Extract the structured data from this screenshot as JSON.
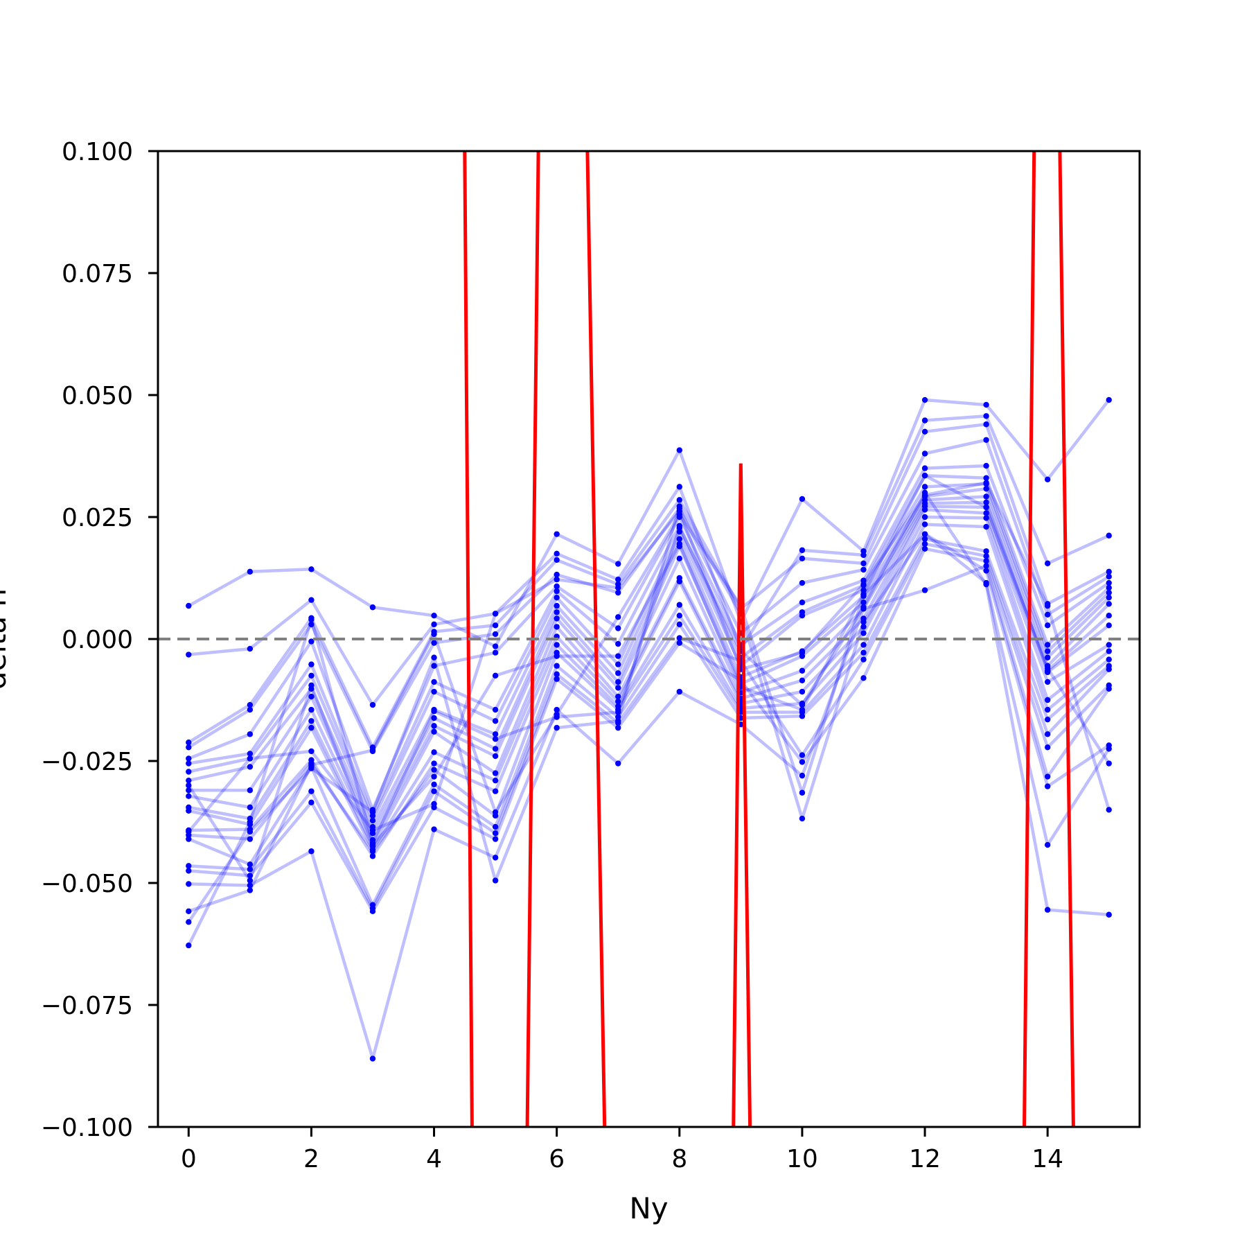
{
  "chart_data": {
    "type": "line",
    "title": "",
    "xlabel": "Ny",
    "ylabel": "delta n",
    "xlim": [
      -0.5,
      15.5
    ],
    "ylim": [
      -0.1,
      0.1
    ],
    "xticks": [
      0,
      2,
      4,
      6,
      8,
      10,
      12,
      14
    ],
    "xtick_labels": [
      "0",
      "2",
      "4",
      "6",
      "8",
      "10",
      "12",
      "14"
    ],
    "yticks": [
      0.1,
      0.075,
      0.05,
      0.025,
      0.0,
      -0.025,
      -0.05,
      -0.075,
      -0.1
    ],
    "ytick_labels": [
      "0.100",
      "0.075",
      "0.050",
      "0.025",
      "0.000",
      "−0.025",
      "−0.050",
      "−0.075",
      "−0.100"
    ],
    "grid": false,
    "reference_line": {
      "y": 0.0,
      "style": "dashed",
      "color": "#808080"
    },
    "colors": {
      "ensemble": "#0000ff",
      "highlight": "#ff0000"
    },
    "x": [
      0,
      1,
      2,
      3,
      4,
      5,
      6,
      7,
      8,
      9,
      10,
      11,
      12,
      13,
      14,
      15
    ],
    "ensemble_series": [
      [
        0.0068,
        0.0138,
        0.0143,
        0.0065,
        0.0048,
        -0.0015,
        0.0215,
        0.0154,
        0.0387,
        0.0035,
        0.0287,
        0.018,
        0.049,
        0.048,
        0.0327,
        0.049
      ],
      [
        -0.0032,
        -0.002,
        0.008,
        -0.0135,
        0.003,
        0.0052,
        0.0175,
        0.0122,
        0.0312,
        -0.0021,
        0.0182,
        0.0172,
        0.0448,
        0.0457,
        0.0155,
        0.0212
      ],
      [
        -0.0212,
        -0.0135,
        0.0043,
        -0.0222,
        0.0015,
        0.0028,
        0.0162,
        0.0112,
        0.0285,
        0.0062,
        0.0165,
        0.0155,
        0.0425,
        0.044,
        0.0072,
        0.0138
      ],
      [
        -0.0222,
        -0.0145,
        0.003,
        -0.023,
        -0.0008,
        0.001,
        0.0132,
        0.0095,
        0.0268,
        0.0012,
        0.0115,
        0.0142,
        0.038,
        0.0408,
        0.005,
        0.0128
      ],
      [
        -0.0245,
        -0.0195,
        -0.0005,
        -0.035,
        -0.0055,
        -0.0028,
        0.0108,
        0.0022,
        0.025,
        -0.0012,
        0.0075,
        0.012,
        0.035,
        0.0355,
        0.0028,
        0.0115
      ],
      [
        -0.0255,
        -0.0235,
        -0.0052,
        -0.0362,
        -0.0088,
        -0.0145,
        0.0098,
        -0.001,
        0.0232,
        -0.0038,
        0.0055,
        0.011,
        0.0335,
        0.033,
        -0.0012,
        0.0105
      ],
      [
        -0.0272,
        -0.0245,
        -0.0075,
        -0.0372,
        -0.0108,
        -0.0168,
        0.0085,
        -0.0052,
        0.022,
        -0.0055,
        0.0048,
        0.01,
        0.0312,
        0.0318,
        -0.0025,
        0.0095
      ],
      [
        -0.029,
        -0.0262,
        -0.0102,
        -0.0385,
        -0.0145,
        -0.0195,
        0.0068,
        -0.007,
        0.0205,
        -0.0078,
        -0.0025,
        0.0088,
        0.0292,
        0.0308,
        -0.0038,
        0.0085
      ],
      [
        -0.031,
        -0.031,
        -0.0118,
        -0.0398,
        -0.0162,
        -0.0225,
        0.0055,
        -0.0088,
        0.019,
        -0.0092,
        -0.0035,
        0.0075,
        0.0285,
        0.0292,
        -0.0055,
        0.0072
      ],
      [
        -0.0322,
        -0.0345,
        -0.0145,
        -0.0412,
        -0.0178,
        -0.024,
        0.0042,
        -0.01,
        0.0165,
        -0.011,
        -0.0065,
        0.0062,
        0.0278,
        0.028,
        -0.0065,
        0.0048
      ],
      [
        -0.0345,
        -0.0368,
        -0.0168,
        -0.0425,
        -0.019,
        -0.0275,
        0.0025,
        -0.0118,
        0.0125,
        -0.0122,
        -0.0085,
        0.0042,
        0.0272,
        0.027,
        -0.0068,
        0.0028
      ],
      [
        -0.0352,
        -0.038,
        -0.0182,
        -0.0432,
        -0.0232,
        -0.029,
        0.0005,
        -0.0128,
        0.0118,
        -0.0132,
        -0.0108,
        0.0025,
        0.0265,
        0.0258,
        -0.0088,
        -0.0012
      ],
      [
        -0.0392,
        -0.039,
        -0.0248,
        -0.0445,
        -0.0255,
        -0.0312,
        -0.0012,
        -0.0138,
        0.007,
        -0.0142,
        -0.0132,
        0.0012,
        0.025,
        0.0248,
        -0.0125,
        -0.0025
      ],
      [
        -0.0402,
        -0.041,
        -0.0255,
        -0.0435,
        -0.0268,
        -0.0362,
        -0.0028,
        -0.0145,
        0.0048,
        -0.015,
        -0.015,
        -0.0012,
        0.0235,
        0.023,
        -0.0145,
        -0.0042
      ],
      [
        -0.041,
        -0.0462,
        -0.0262,
        -0.0545,
        -0.0298,
        -0.0385,
        -0.0055,
        -0.016,
        0.003,
        -0.0162,
        -0.0158,
        -0.0028,
        0.0205,
        0.018,
        -0.0165,
        -0.0055
      ],
      [
        -0.0465,
        -0.0472,
        -0.0312,
        -0.0552,
        -0.0312,
        -0.0398,
        -0.0072,
        -0.0172,
        0.0002,
        -0.0045,
        -0.0238,
        -0.0042,
        0.0195,
        0.017,
        -0.0195,
        -0.0062
      ],
      [
        -0.0475,
        -0.0485,
        -0.0335,
        -0.0558,
        -0.0345,
        -0.041,
        -0.0082,
        -0.0182,
        -0.0008,
        -0.0085,
        -0.0252,
        -0.008,
        0.0185,
        0.016,
        -0.0222,
        -0.0095
      ],
      [
        -0.0502,
        -0.0505,
        -0.0435,
        -0.086,
        -0.039,
        -0.0448,
        -0.0145,
        -0.0255,
        -0.0108,
        -0.0175,
        -0.028,
        0.0062,
        0.01,
        0.015,
        -0.0282,
        -0.0102
      ],
      [
        -0.0558,
        -0.0515,
        -0.0258,
        -0.0228,
        0.001,
        -0.0355,
        -0.0155,
        0.0045,
        0.0255,
        0.0068,
        -0.0315,
        0.009,
        0.0215,
        0.014,
        -0.0302,
        -0.0218
      ],
      [
        -0.058,
        -0.0395,
        -0.0265,
        -0.0355,
        -0.0038,
        -0.0495,
        -0.0182,
        -0.0168,
        0.0272,
        0.0052,
        -0.0368,
        0.0035,
        0.0215,
        0.0115,
        -0.0422,
        -0.0225
      ],
      [
        -0.0628,
        -0.0375,
        0.004,
        -0.0418,
        -0.0148,
        -0.0205,
        -0.016,
        -0.015,
        0.0228,
        -0.0025,
        -0.0135,
        0.0065,
        0.03,
        0.0112,
        -0.0555,
        -0.0565
      ],
      [
        -0.0395,
        -0.0245,
        -0.023,
        -0.0392,
        -0.0338,
        0.0052,
        0.0122,
        0.0105,
        0.0262,
        -0.0062,
        -0.0028,
        0.0112,
        0.0295,
        0.032,
        0.0068,
        -0.035
      ],
      [
        -0.03,
        -0.0495,
        -0.0095,
        -0.0422,
        -0.0282,
        -0.0075,
        -0.0035,
        -0.0035,
        0.0195,
        -0.0098,
        -0.0145,
        0.0092,
        0.0335,
        0.027,
        -0.006,
        -0.0255
      ]
    ],
    "highlight_series": [
      {
        "x": [
          4.5,
          4.62
        ],
        "y": [
          0.1,
          -0.1
        ]
      },
      {
        "x": [
          5.52,
          5.7
        ],
        "y": [
          -0.1,
          0.1
        ]
      },
      {
        "x": [
          6.5,
          6.78
        ],
        "y": [
          0.1,
          -0.1
        ]
      },
      {
        "x": [
          8.88,
          9.0,
          9.15
        ],
        "y": [
          -0.1,
          0.036,
          -0.1
        ]
      },
      {
        "x": [
          13.62,
          13.78
        ],
        "y": [
          -0.1,
          0.1
        ]
      },
      {
        "x": [
          14.2,
          14.42
        ],
        "y": [
          0.1,
          -0.1
        ]
      }
    ]
  }
}
